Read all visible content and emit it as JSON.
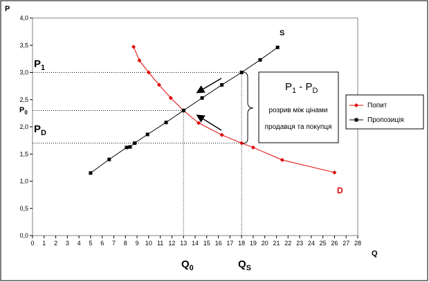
{
  "chart_data": {
    "type": "line",
    "title": "",
    "xlabel": "Q",
    "ylabel": "P",
    "xlim": [
      0,
      28
    ],
    "ylim": [
      0,
      4.0
    ],
    "xticks": [
      0,
      1,
      2,
      3,
      4,
      5,
      6,
      7,
      8,
      9,
      10,
      11,
      12,
      13,
      14,
      15,
      16,
      17,
      18,
      19,
      20,
      21,
      22,
      23,
      24,
      25,
      26,
      27,
      28
    ],
    "yticks": [
      0,
      0.5,
      1.0,
      1.5,
      2.0,
      2.5,
      3.0,
      3.5,
      4.0
    ],
    "ytick_labels": [
      "0,0",
      "0,5",
      "1,0",
      "1,5",
      "2,0",
      "2,5",
      "3,0",
      "3,5",
      "4,0"
    ],
    "grid": false,
    "legend_position": "right",
    "series": [
      {
        "name": "Попит",
        "color": "#e00000",
        "marker": "diamond",
        "end_label": "D",
        "x": [
          8.7,
          9.2,
          10.0,
          10.9,
          11.9,
          13.0,
          14.3,
          16.3,
          18.0,
          19.0,
          21.5,
          26.0
        ],
        "y": [
          3.47,
          3.22,
          3.0,
          2.77,
          2.53,
          2.3,
          2.07,
          1.85,
          1.7,
          1.62,
          1.39,
          1.16
        ]
      },
      {
        "name": "Пропозиція",
        "color": "#000000",
        "marker": "square",
        "end_label": "S",
        "x": [
          5.0,
          6.6,
          8.1,
          8.4,
          8.8,
          9.9,
          11.5,
          13.0,
          14.6,
          16.3,
          18.0,
          19.6,
          21.1
        ],
        "y": [
          1.15,
          1.4,
          1.62,
          1.63,
          1.7,
          1.86,
          2.08,
          2.3,
          2.53,
          2.77,
          3.0,
          3.23,
          3.46
        ]
      }
    ],
    "reference_lines": {
      "p1": 3.0,
      "p0": 2.3,
      "pd": 1.7,
      "q0": 13.0,
      "qs": 18.0
    },
    "annotations": {
      "p1_label": "P1",
      "p0_label": "P0",
      "pd_label": "PD",
      "q0_label": "Q0",
      "qs_label": "QS",
      "box_title": "P1 - PD",
      "box_line1": "розрив між цінами",
      "box_line2": "продавця та покупця"
    }
  }
}
